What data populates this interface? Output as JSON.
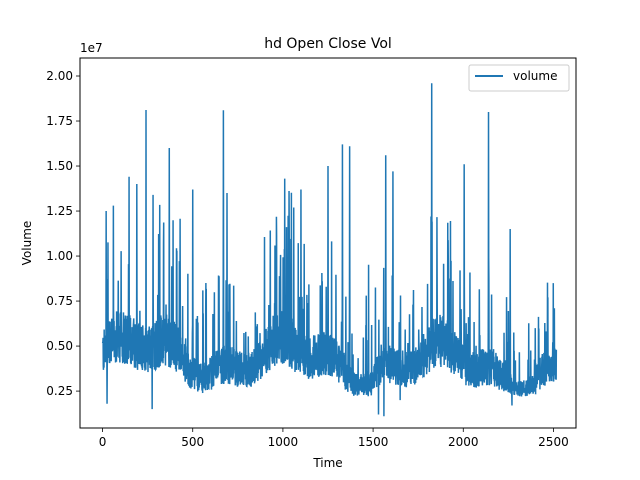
{
  "chart_data": {
    "type": "line",
    "title": "hd Open Close Vol",
    "xlabel": "Time",
    "ylabel": "Volume",
    "offset_label": "1e7",
    "xlim": [
      -125,
      2625
    ],
    "ylim": [
      450000,
      21000000
    ],
    "xticks": [
      0,
      500,
      1000,
      1500,
      2000,
      2500
    ],
    "xtick_labels": [
      "0",
      "500",
      "1000",
      "1500",
      "2000",
      "2500"
    ],
    "yticks": [
      2500000,
      5000000,
      7500000,
      10000000,
      12500000,
      15000000,
      17500000,
      20000000
    ],
    "ytick_labels": [
      "0.25",
      "0.50",
      "0.75",
      "1.00",
      "1.25",
      "1.50",
      "1.75",
      "2.00"
    ],
    "grid": false,
    "legend": {
      "position": "top-right",
      "entries": [
        "volume"
      ]
    },
    "color": "#1f77b4",
    "series": [
      {
        "name": "volume",
        "n_points": 2517,
        "x_range": [
          0,
          2516
        ],
        "y_min_approx": 1100000,
        "y_max_approx": 19600000,
        "typical_range": [
          2500000,
          6500000
        ],
        "peaks": [
          {
            "x": 20,
            "y": 12500000
          },
          {
            "x": 60,
            "y": 12800000
          },
          {
            "x": 190,
            "y": 14000000
          },
          {
            "x": 280,
            "y": 13400000
          },
          {
            "x": 370,
            "y": 16000000
          },
          {
            "x": 500,
            "y": 13700000
          },
          {
            "x": 670,
            "y": 18100000
          },
          {
            "x": 690,
            "y": 13500000
          },
          {
            "x": 1010,
            "y": 14300000
          },
          {
            "x": 1060,
            "y": 12700000
          },
          {
            "x": 1100,
            "y": 13700000
          },
          {
            "x": 1250,
            "y": 15000000
          },
          {
            "x": 1330,
            "y": 16200000
          },
          {
            "x": 1370,
            "y": 16100000
          },
          {
            "x": 1570,
            "y": 15600000
          },
          {
            "x": 1610,
            "y": 14700000
          },
          {
            "x": 1825,
            "y": 19600000
          },
          {
            "x": 2005,
            "y": 15100000
          },
          {
            "x": 2140,
            "y": 18000000
          },
          {
            "x": 2260,
            "y": 11500000
          },
          {
            "x": 2505,
            "y": 7100000
          }
        ],
        "troughs": [
          {
            "x": 25,
            "y": 1800000
          },
          {
            "x": 275,
            "y": 1500000
          },
          {
            "x": 1530,
            "y": 1200000
          },
          {
            "x": 1560,
            "y": 1100000
          },
          {
            "x": 1650,
            "y": 2000000
          },
          {
            "x": 2270,
            "y": 1700000
          }
        ]
      }
    ]
  }
}
